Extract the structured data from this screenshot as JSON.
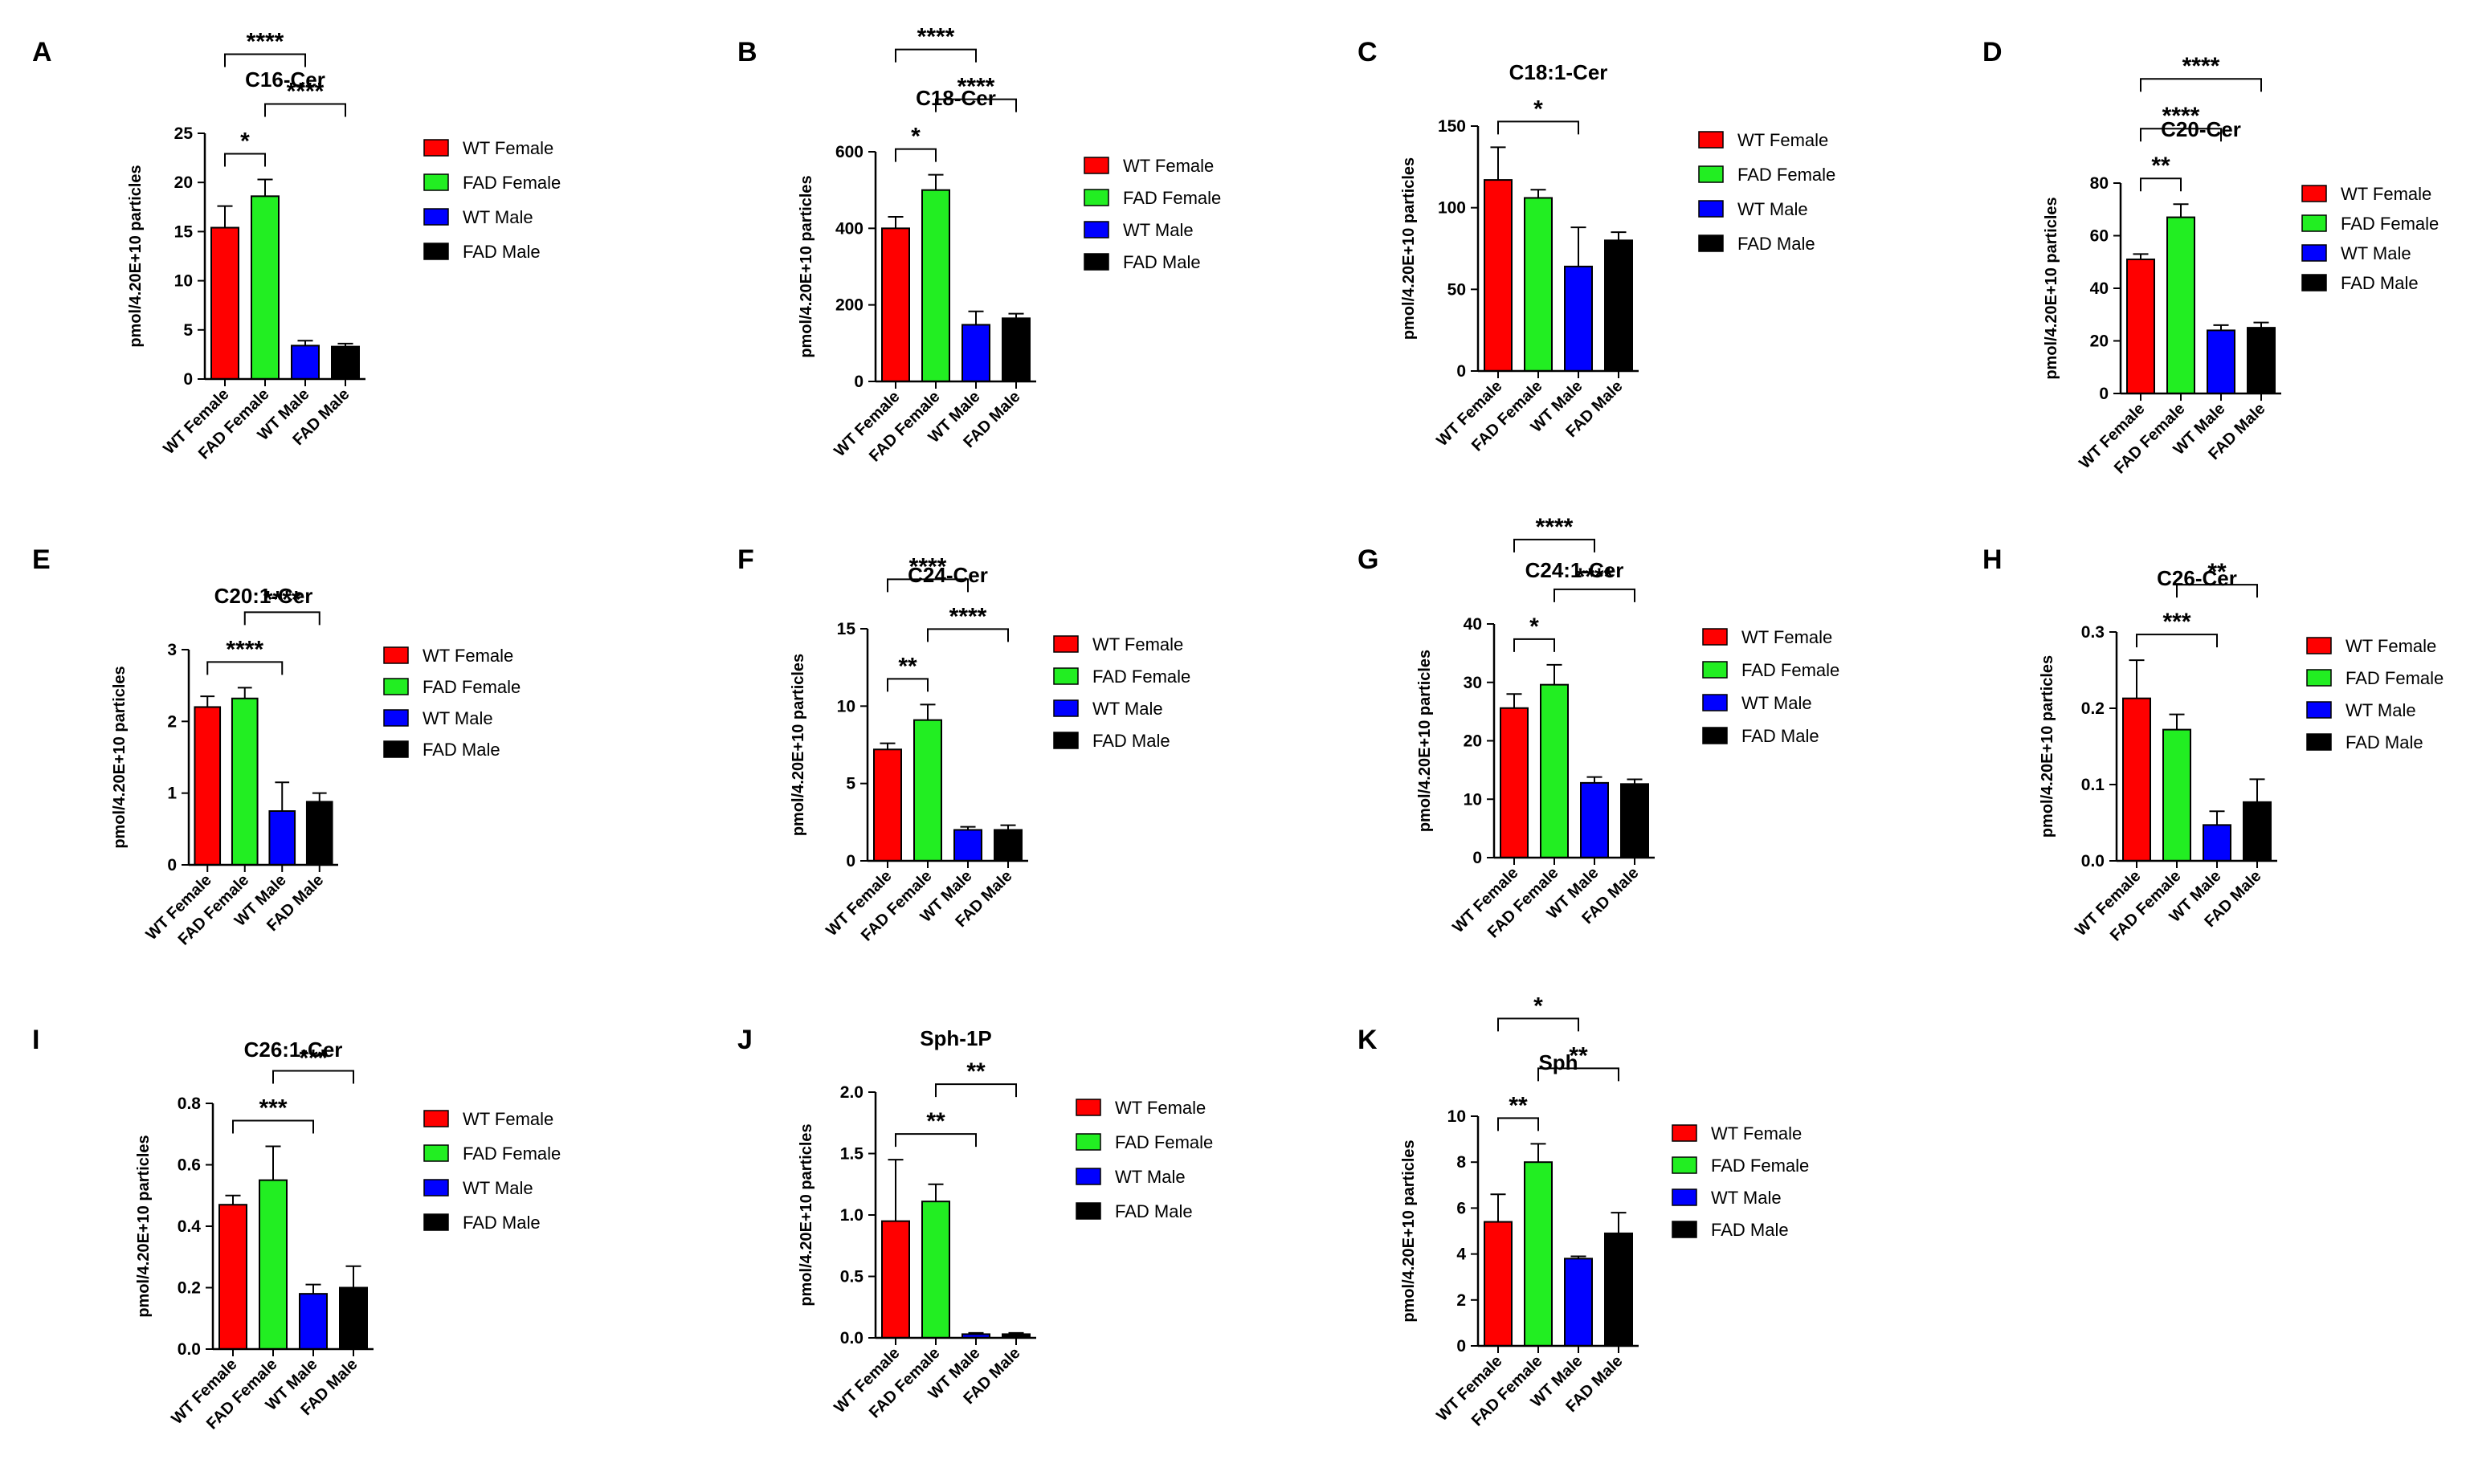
{
  "figure": {
    "categories": [
      "WT Female",
      "FAD Female",
      "WT Male",
      "FAD Male"
    ],
    "colors": [
      "#ff0000",
      "#22ee22",
      "#0000ff",
      "#000000"
    ],
    "ylabel": "pmol/4.20E+10 particles"
  },
  "chart_data": [
    {
      "type": "bar",
      "panel": "A",
      "title": "C16-Cer",
      "categories": [
        "WT Female",
        "FAD Female",
        "WT Male",
        "FAD Male"
      ],
      "values": [
        15.4,
        18.6,
        3.4,
        3.3
      ],
      "errors": [
        2.2,
        1.7,
        0.5,
        0.3
      ],
      "ylabel": "pmol/4.20E+10 particles",
      "ylim": [
        0,
        25
      ],
      "yticks": [
        0,
        5,
        10,
        15,
        20,
        25
      ],
      "ytick_labels": [
        "0",
        "5",
        "10",
        "15",
        "20",
        "25"
      ],
      "legend": [
        "WT Female",
        "FAD Female",
        "WT Male",
        "FAD Male"
      ],
      "significance": [
        {
          "from": 0,
          "to": 1,
          "label": "*"
        },
        {
          "from": 1,
          "to": 3,
          "label": "****"
        },
        {
          "from": 0,
          "to": 2,
          "label": "****"
        }
      ]
    },
    {
      "type": "bar",
      "panel": "B",
      "title": "C18-Cer",
      "categories": [
        "WT Female",
        "FAD Female",
        "WT Male",
        "FAD Male"
      ],
      "values": [
        400,
        500,
        148,
        165
      ],
      "errors": [
        30,
        40,
        35,
        12
      ],
      "ylabel": "pmol/4.20E+10 particles",
      "ylim": [
        0,
        600
      ],
      "yticks": [
        0,
        200,
        400,
        600
      ],
      "ytick_labels": [
        "0",
        "200",
        "400",
        "600"
      ],
      "legend": [
        "WT Female",
        "FAD Female",
        "WT Male",
        "FAD Male"
      ],
      "significance": [
        {
          "from": 0,
          "to": 1,
          "label": "*"
        },
        {
          "from": 1,
          "to": 3,
          "label": "****"
        },
        {
          "from": 0,
          "to": 2,
          "label": "****"
        }
      ]
    },
    {
      "type": "bar",
      "panel": "C",
      "title": "C18:1-Cer",
      "categories": [
        "WT Female",
        "FAD Female",
        "WT Male",
        "FAD Male"
      ],
      "values": [
        117,
        106,
        64,
        80
      ],
      "errors": [
        20,
        5,
        24,
        5
      ],
      "ylabel": "pmol/4.20E+10 particles",
      "ylim": [
        0,
        150
      ],
      "yticks": [
        0,
        50,
        100,
        150
      ],
      "ytick_labels": [
        "0",
        "50",
        "100",
        "150"
      ],
      "legend": [
        "WT Female",
        "FAD Female",
        "WT Male",
        "FAD Male"
      ],
      "significance": [
        {
          "from": 0,
          "to": 2,
          "label": "*"
        }
      ]
    },
    {
      "type": "bar",
      "panel": "D",
      "title": "C20-Cer",
      "categories": [
        "WT Female",
        "FAD Female",
        "WT Male",
        "FAD Male"
      ],
      "values": [
        51,
        67,
        24,
        25
      ],
      "errors": [
        2,
        5,
        2,
        2
      ],
      "ylabel": "pmol/4.20E+10 particles",
      "ylim": [
        0,
        80
      ],
      "yticks": [
        0,
        20,
        40,
        60,
        80
      ],
      "ytick_labels": [
        "0",
        "20",
        "40",
        "60",
        "80"
      ],
      "legend": [
        "WT Female",
        "FAD Female",
        "WT Male",
        "FAD Male"
      ],
      "significance": [
        {
          "from": 0,
          "to": 1,
          "label": "**"
        },
        {
          "from": 0,
          "to": 2,
          "label": "****"
        },
        {
          "from": 0,
          "to": 3,
          "label": "****"
        }
      ]
    },
    {
      "type": "bar",
      "panel": "E",
      "title": "C20:1-Cer",
      "categories": [
        "WT Female",
        "FAD Female",
        "WT Male",
        "FAD Male"
      ],
      "values": [
        2.2,
        2.32,
        0.75,
        0.88
      ],
      "errors": [
        0.15,
        0.15,
        0.4,
        0.12
      ],
      "ylabel": "pmol/4.20E+10 particles",
      "ylim": [
        0,
        3
      ],
      "yticks": [
        0,
        1,
        2,
        3
      ],
      "ytick_labels": [
        "0",
        "1",
        "2",
        "3"
      ],
      "legend": [
        "WT Female",
        "FAD Female",
        "WT Male",
        "FAD Male"
      ],
      "significance": [
        {
          "from": 0,
          "to": 2,
          "label": "****"
        },
        {
          "from": 1,
          "to": 3,
          "label": "****"
        }
      ]
    },
    {
      "type": "bar",
      "panel": "F",
      "title": "C24-Cer",
      "categories": [
        "WT Female",
        "FAD Female",
        "WT Male",
        "FAD Male"
      ],
      "values": [
        7.2,
        9.1,
        2.0,
        2.0
      ],
      "errors": [
        0.4,
        1.0,
        0.2,
        0.3
      ],
      "ylabel": "pmol/4.20E+10 particles",
      "ylim": [
        0,
        15
      ],
      "yticks": [
        0,
        5,
        10,
        15
      ],
      "ytick_labels": [
        "0",
        "5",
        "10",
        "15"
      ],
      "legend": [
        "WT Female",
        "FAD Female",
        "WT Male",
        "FAD Male"
      ],
      "significance": [
        {
          "from": 0,
          "to": 1,
          "label": "**"
        },
        {
          "from": 1,
          "to": 3,
          "label": "****"
        },
        {
          "from": 0,
          "to": 2,
          "label": "****"
        }
      ]
    },
    {
      "type": "bar",
      "panel": "G",
      "title": "C24:1-Cer",
      "categories": [
        "WT Female",
        "FAD Female",
        "WT Male",
        "FAD Male"
      ],
      "values": [
        25.6,
        29.6,
        12.8,
        12.6
      ],
      "errors": [
        2.4,
        3.4,
        1.0,
        0.8
      ],
      "ylabel": "pmol/4.20E+10 particles",
      "ylim": [
        0,
        40
      ],
      "yticks": [
        0,
        10,
        20,
        30,
        40
      ],
      "ytick_labels": [
        "0",
        "10",
        "20",
        "30",
        "40"
      ],
      "legend": [
        "WT Female",
        "FAD Female",
        "WT Male",
        "FAD Male"
      ],
      "significance": [
        {
          "from": 0,
          "to": 1,
          "label": "*"
        },
        {
          "from": 1,
          "to": 3,
          "label": "****"
        },
        {
          "from": 0,
          "to": 2,
          "label": "****"
        }
      ]
    },
    {
      "type": "bar",
      "panel": "H",
      "title": "C26-Cer",
      "categories": [
        "WT Female",
        "FAD Female",
        "WT Male",
        "FAD Male"
      ],
      "values": [
        0.213,
        0.172,
        0.047,
        0.077
      ],
      "errors": [
        0.05,
        0.02,
        0.018,
        0.03
      ],
      "ylabel": "pmol/4.20E+10 particles",
      "ylim": [
        0,
        0.3
      ],
      "yticks": [
        0,
        0.1,
        0.2,
        0.3
      ],
      "ytick_labels": [
        "0.0",
        "0.1",
        "0.2",
        "0.3"
      ],
      "legend": [
        "WT Female",
        "FAD Female",
        "WT Male",
        "FAD Male"
      ],
      "significance": [
        {
          "from": 0,
          "to": 2,
          "label": "***"
        },
        {
          "from": 1,
          "to": 3,
          "label": "**"
        }
      ]
    },
    {
      "type": "bar",
      "panel": "I",
      "title": "C26:1-Cer",
      "categories": [
        "WT Female",
        "FAD Female",
        "WT Male",
        "FAD Male"
      ],
      "values": [
        0.47,
        0.55,
        0.18,
        0.2
      ],
      "errors": [
        0.03,
        0.11,
        0.03,
        0.07
      ],
      "ylabel": "pmol/4.20E+10 particles",
      "ylim": [
        0,
        0.8
      ],
      "yticks": [
        0,
        0.2,
        0.4,
        0.6,
        0.8
      ],
      "ytick_labels": [
        "0.0",
        "0.2",
        "0.4",
        "0.6",
        "0.8"
      ],
      "legend": [
        "WT Female",
        "FAD Female",
        "WT Male",
        "FAD Male"
      ],
      "significance": [
        {
          "from": 0,
          "to": 2,
          "label": "***"
        },
        {
          "from": 1,
          "to": 3,
          "label": "***"
        }
      ]
    },
    {
      "type": "bar",
      "panel": "J",
      "title": "Sph-1P",
      "categories": [
        "WT Female",
        "FAD Female",
        "WT Male",
        "FAD Male"
      ],
      "values": [
        0.95,
        1.11,
        0.03,
        0.03
      ],
      "errors": [
        0.5,
        0.14,
        0.01,
        0.01
      ],
      "ylabel": "pmol/4.20E+10 particles",
      "ylim": [
        0,
        2.0
      ],
      "yticks": [
        0,
        0.5,
        1.0,
        1.5,
        2.0
      ],
      "ytick_labels": [
        "0.0",
        "0.5",
        "1.0",
        "1.5",
        "2.0"
      ],
      "legend": [
        "WT Female",
        "FAD Female",
        "WT Male",
        "FAD Male"
      ],
      "significance": [
        {
          "from": 0,
          "to": 2,
          "label": "**"
        },
        {
          "from": 1,
          "to": 3,
          "label": "**"
        }
      ]
    },
    {
      "type": "bar",
      "panel": "K",
      "title": "Sph",
      "categories": [
        "WT Female",
        "FAD Female",
        "WT Male",
        "FAD Male"
      ],
      "values": [
        5.4,
        8.0,
        3.8,
        4.9
      ],
      "errors": [
        1.2,
        0.8,
        0.1,
        0.9
      ],
      "ylabel": "pmol/4.20E+10 particles",
      "ylim": [
        0,
        10
      ],
      "yticks": [
        0,
        2,
        4,
        6,
        8,
        10
      ],
      "ytick_labels": [
        "0",
        "2",
        "4",
        "6",
        "8",
        "10"
      ],
      "legend": [
        "WT Female",
        "FAD Female",
        "WT Male",
        "FAD Male"
      ],
      "significance": [
        {
          "from": 0,
          "to": 1,
          "label": "**"
        },
        {
          "from": 1,
          "to": 3,
          "label": "**"
        },
        {
          "from": 0,
          "to": 2,
          "label": "*"
        }
      ]
    }
  ]
}
